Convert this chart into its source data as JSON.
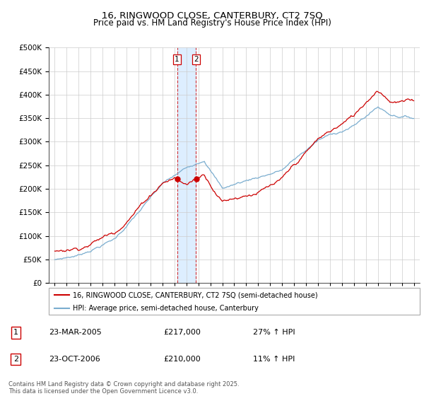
{
  "title1": "16, RINGWOOD CLOSE, CANTERBURY, CT2 7SQ",
  "title2": "Price paid vs. HM Land Registry's House Price Index (HPI)",
  "legend_line1": "16, RINGWOOD CLOSE, CANTERBURY, CT2 7SQ (semi-detached house)",
  "legend_line2": "HPI: Average price, semi-detached house, Canterbury",
  "annotation1_label": "1",
  "annotation1_date": "23-MAR-2005",
  "annotation1_price": "£217,000",
  "annotation1_hpi": "27% ↑ HPI",
  "annotation2_label": "2",
  "annotation2_date": "23-OCT-2006",
  "annotation2_price": "£210,000",
  "annotation2_hpi": "11% ↑ HPI",
  "footer": "Contains HM Land Registry data © Crown copyright and database right 2025.\nThis data is licensed under the Open Government Licence v3.0.",
  "red_color": "#cc0000",
  "blue_color": "#7aadcf",
  "vline_color": "#cc0000",
  "fill_color": "#ddeeff",
  "grid_color": "#cccccc",
  "bg_color": "#ffffff",
  "ylim": [
    0,
    500000
  ],
  "yticks": [
    0,
    50000,
    100000,
    150000,
    200000,
    250000,
    300000,
    350000,
    400000,
    450000,
    500000
  ],
  "purchase1_year": 2005.22,
  "purchase1_value": 217000,
  "purchase2_year": 2006.81,
  "purchase2_value": 210000,
  "xmin": 1994.5,
  "xmax": 2025.5
}
